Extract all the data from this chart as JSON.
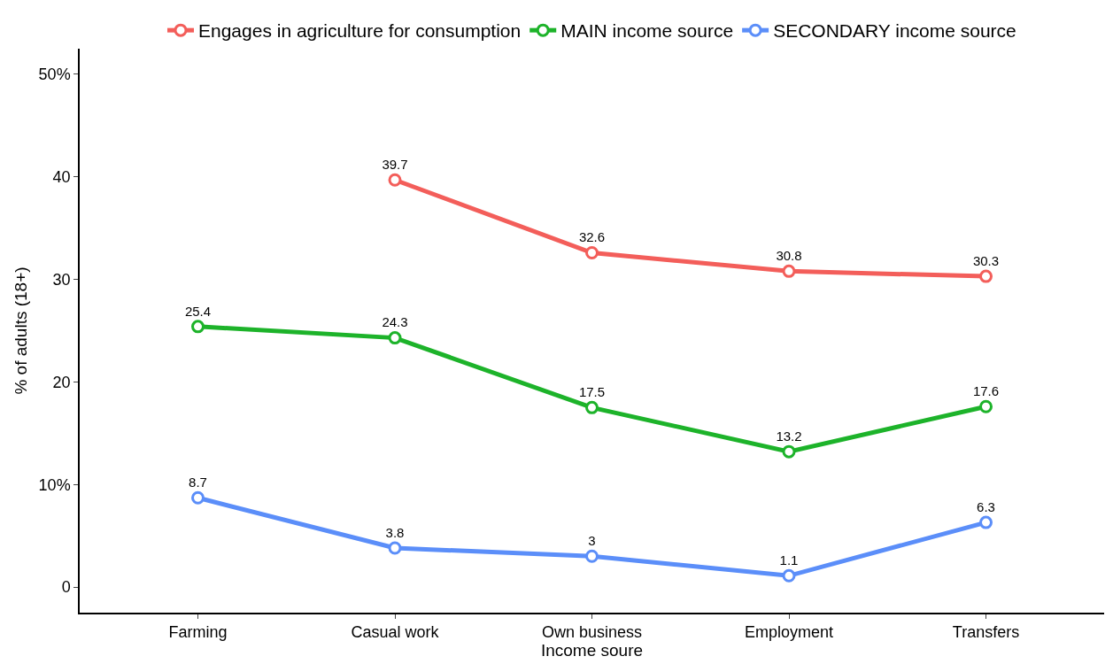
{
  "chart_data": {
    "type": "line",
    "xlabel": "Income soure",
    "ylabel": "% of adults (18+)",
    "categories": [
      "Farming",
      "Casual work",
      "Own business",
      "Employment",
      "Transfers"
    ],
    "series": [
      {
        "name": "Engages in agriculture for consumption",
        "color": "#f35e5a",
        "values": [
          null,
          39.7,
          32.6,
          30.8,
          30.3
        ]
      },
      {
        "name": "MAIN income source",
        "color": "#1db32a",
        "values": [
          25.4,
          24.3,
          17.5,
          13.2,
          17.6
        ]
      },
      {
        "name": "SECONDARY income source",
        "color": "#5b8ef9",
        "values": [
          8.7,
          3.8,
          3,
          1.1,
          6.3
        ]
      }
    ],
    "ylim": [
      -2.5,
      52.5
    ],
    "yticks": [
      0,
      {
        "value": 10,
        "label": "10%"
      },
      20,
      30,
      40,
      {
        "value": 50,
        "label": "50%"
      }
    ],
    "data_labels": true,
    "legend": "top",
    "marker": "circle",
    "line_style": "solid"
  }
}
